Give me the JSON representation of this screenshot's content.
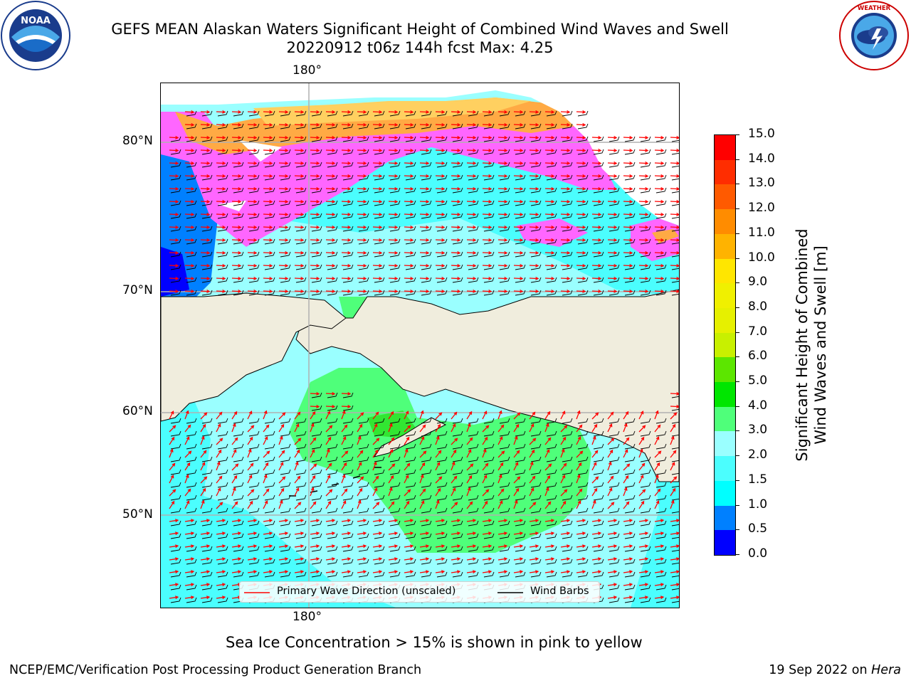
{
  "title": {
    "line1": "GEFS MEAN Alaskan Waters Significant Height of Combined Wind Waves and Swell",
    "line2": "20220912 t06z 144h fcst   Max: 4.25"
  },
  "logos": {
    "left": {
      "name": "NOAA",
      "text": "NOAA",
      "ring_text": "NATIONAL OCEANIC AND ATMOSPHERIC ADMINISTRATION · U.S. DEPARTMENT OF COMMERCE"
    },
    "right": {
      "name": "National Weather Service",
      "ring_text": "NATIONAL WEATHER SERVICE"
    }
  },
  "map": {
    "lon_labels": [
      "180°",
      "180°"
    ],
    "lat_labels": [
      "80°N",
      "70°N",
      "60°N",
      "50°N"
    ],
    "colors": {
      "land": "#f0eddd",
      "ocean_low": "#9affff",
      "ocean_mid": "#4bfefe",
      "green": "#4fff7a",
      "green_dark": "#32e632",
      "blue": "#0080ff",
      "blue_dark": "#0000ff",
      "ice_pink": "#ff66ff",
      "ice_orange": "#ffaa44",
      "ice_yellow": "#ffd060",
      "grid": "#b0b0b0",
      "wave_arrow": "#ff0000",
      "wind_barb": "#000000"
    }
  },
  "legend": {
    "wave_label": "Primary Wave Direction (unscaled)",
    "wind_label": "Wind Barbs"
  },
  "colorbar": {
    "label_line1": "Significant Height of Combined",
    "label_line2": "Wind Waves and Swell [m]",
    "ticks": [
      "0.0",
      "0.5",
      "1.0",
      "1.5",
      "2.0",
      "3.0",
      "4.0",
      "5.0",
      "6.0",
      "7.0",
      "8.0",
      "9.0",
      "10.0",
      "11.0",
      "12.0",
      "13.0",
      "14.0",
      "15.0"
    ],
    "colors": [
      "#0000ff",
      "#0080ff",
      "#00ffff",
      "#4bfefe",
      "#9affff",
      "#4fff7a",
      "#00e600",
      "#5ce600",
      "#c8f000",
      "#e6f000",
      "#f0f000",
      "#ffe600",
      "#ffb300",
      "#ff8c00",
      "#ff5a00",
      "#ff2d00",
      "#ff0000"
    ]
  },
  "notes": {
    "ice": "Sea Ice Concentration > 15% is shown in pink to yellow"
  },
  "footer": {
    "left": "NCEP/EMC/Verification Post Processing Product Generation Branch",
    "date": "19 Sep 2022 on ",
    "machine": "Hera"
  }
}
